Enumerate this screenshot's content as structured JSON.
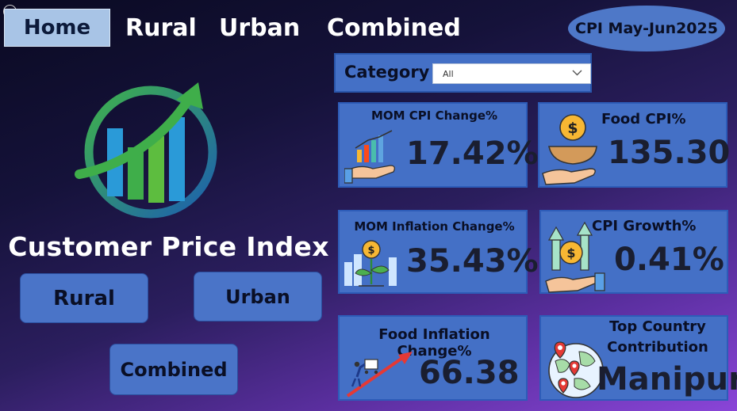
{
  "nav": {
    "home": "Home",
    "rural": "Rural",
    "urban": "Urban",
    "combined": "Combined"
  },
  "badge": "CPI May-Jun2025",
  "title": "Customer Price Index",
  "left_buttons": {
    "rural": "Rural",
    "urban": "Urban",
    "combined": "Combined"
  },
  "filter": {
    "label": "Category",
    "value": "All"
  },
  "kpis": {
    "mom_cpi": {
      "title": "MOM CPI Change%",
      "value": "17.42%"
    },
    "food_cpi": {
      "title": "Food CPI%",
      "value": "135.30"
    },
    "mom_inflation": {
      "title": "MOM Inflation Change%",
      "value": "35.43%"
    },
    "cpi_growth": {
      "title": "CPI Growth%",
      "value": "0.41%"
    },
    "food_inflation": {
      "title": "Food Inflation Change%",
      "value": "66.38"
    },
    "top_country": {
      "title_line1": "Top Country",
      "title_line2": "Contribution",
      "value": "Manipur"
    }
  },
  "colors": {
    "card_bg": "#4470c6",
    "home_bg": "#a8c4e6",
    "logo_green": "#3aa94a",
    "logo_blue": "#1f7fcf"
  }
}
